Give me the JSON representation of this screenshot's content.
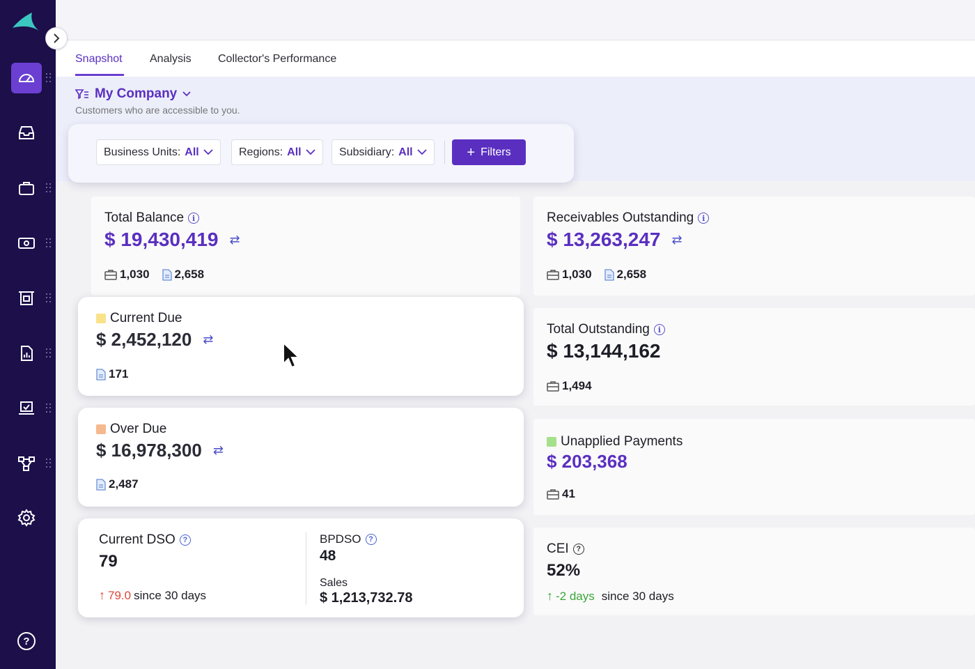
{
  "tabs": [
    "Snapshot",
    "Analysis",
    "Collector's Performance"
  ],
  "company": {
    "name": "My Company",
    "subtitle": "Customers who are accessible to you."
  },
  "filters": {
    "business_units": {
      "label": "Business Units:",
      "value": "All"
    },
    "regions": {
      "label": "Regions:",
      "value": "All"
    },
    "subsidiary": {
      "label": "Subsidiary:",
      "value": "All"
    },
    "filters_button": "Filters"
  },
  "cards": {
    "total_balance": {
      "title": "Total Balance",
      "amount": "$ 19,430,419",
      "customers": "1,030",
      "invoices": "2,658"
    },
    "receivables_outstanding": {
      "title": "Receivables Outstanding",
      "amount": "$ 13,263,247",
      "customers": "1,030",
      "invoices": "2,658"
    },
    "current_due": {
      "title": "Current Due",
      "amount": "$ 2,452,120",
      "invoices": "171",
      "color": "#f9e28a"
    },
    "total_outstanding": {
      "title": "Total Outstanding",
      "amount": "$ 13,144,162",
      "customers": "1,494"
    },
    "over_due": {
      "title": "Over Due",
      "amount": "$ 16,978,300",
      "invoices": "2,487",
      "color": "#f6b98f"
    },
    "unapplied_payments": {
      "title": "Unapplied Payments",
      "amount": "$ 203,368",
      "customers": "41",
      "color": "#a5e08a"
    },
    "current_dso": {
      "title": "Current DSO",
      "value": "79",
      "change": "79.0",
      "since": "since 30 days"
    },
    "bpdso": {
      "title": "BPDSO",
      "value": "48",
      "sales_label": "Sales",
      "sales_value": "$ 1,213,732.78"
    },
    "cei": {
      "title": "CEI",
      "value": "52%",
      "change": "-2 days",
      "since": "since 30 days"
    }
  },
  "colors": {
    "accent": "#5a2fc0",
    "sidebar": "#1c0f4a",
    "up_red": "#e0453a",
    "up_green": "#3aa63a"
  }
}
